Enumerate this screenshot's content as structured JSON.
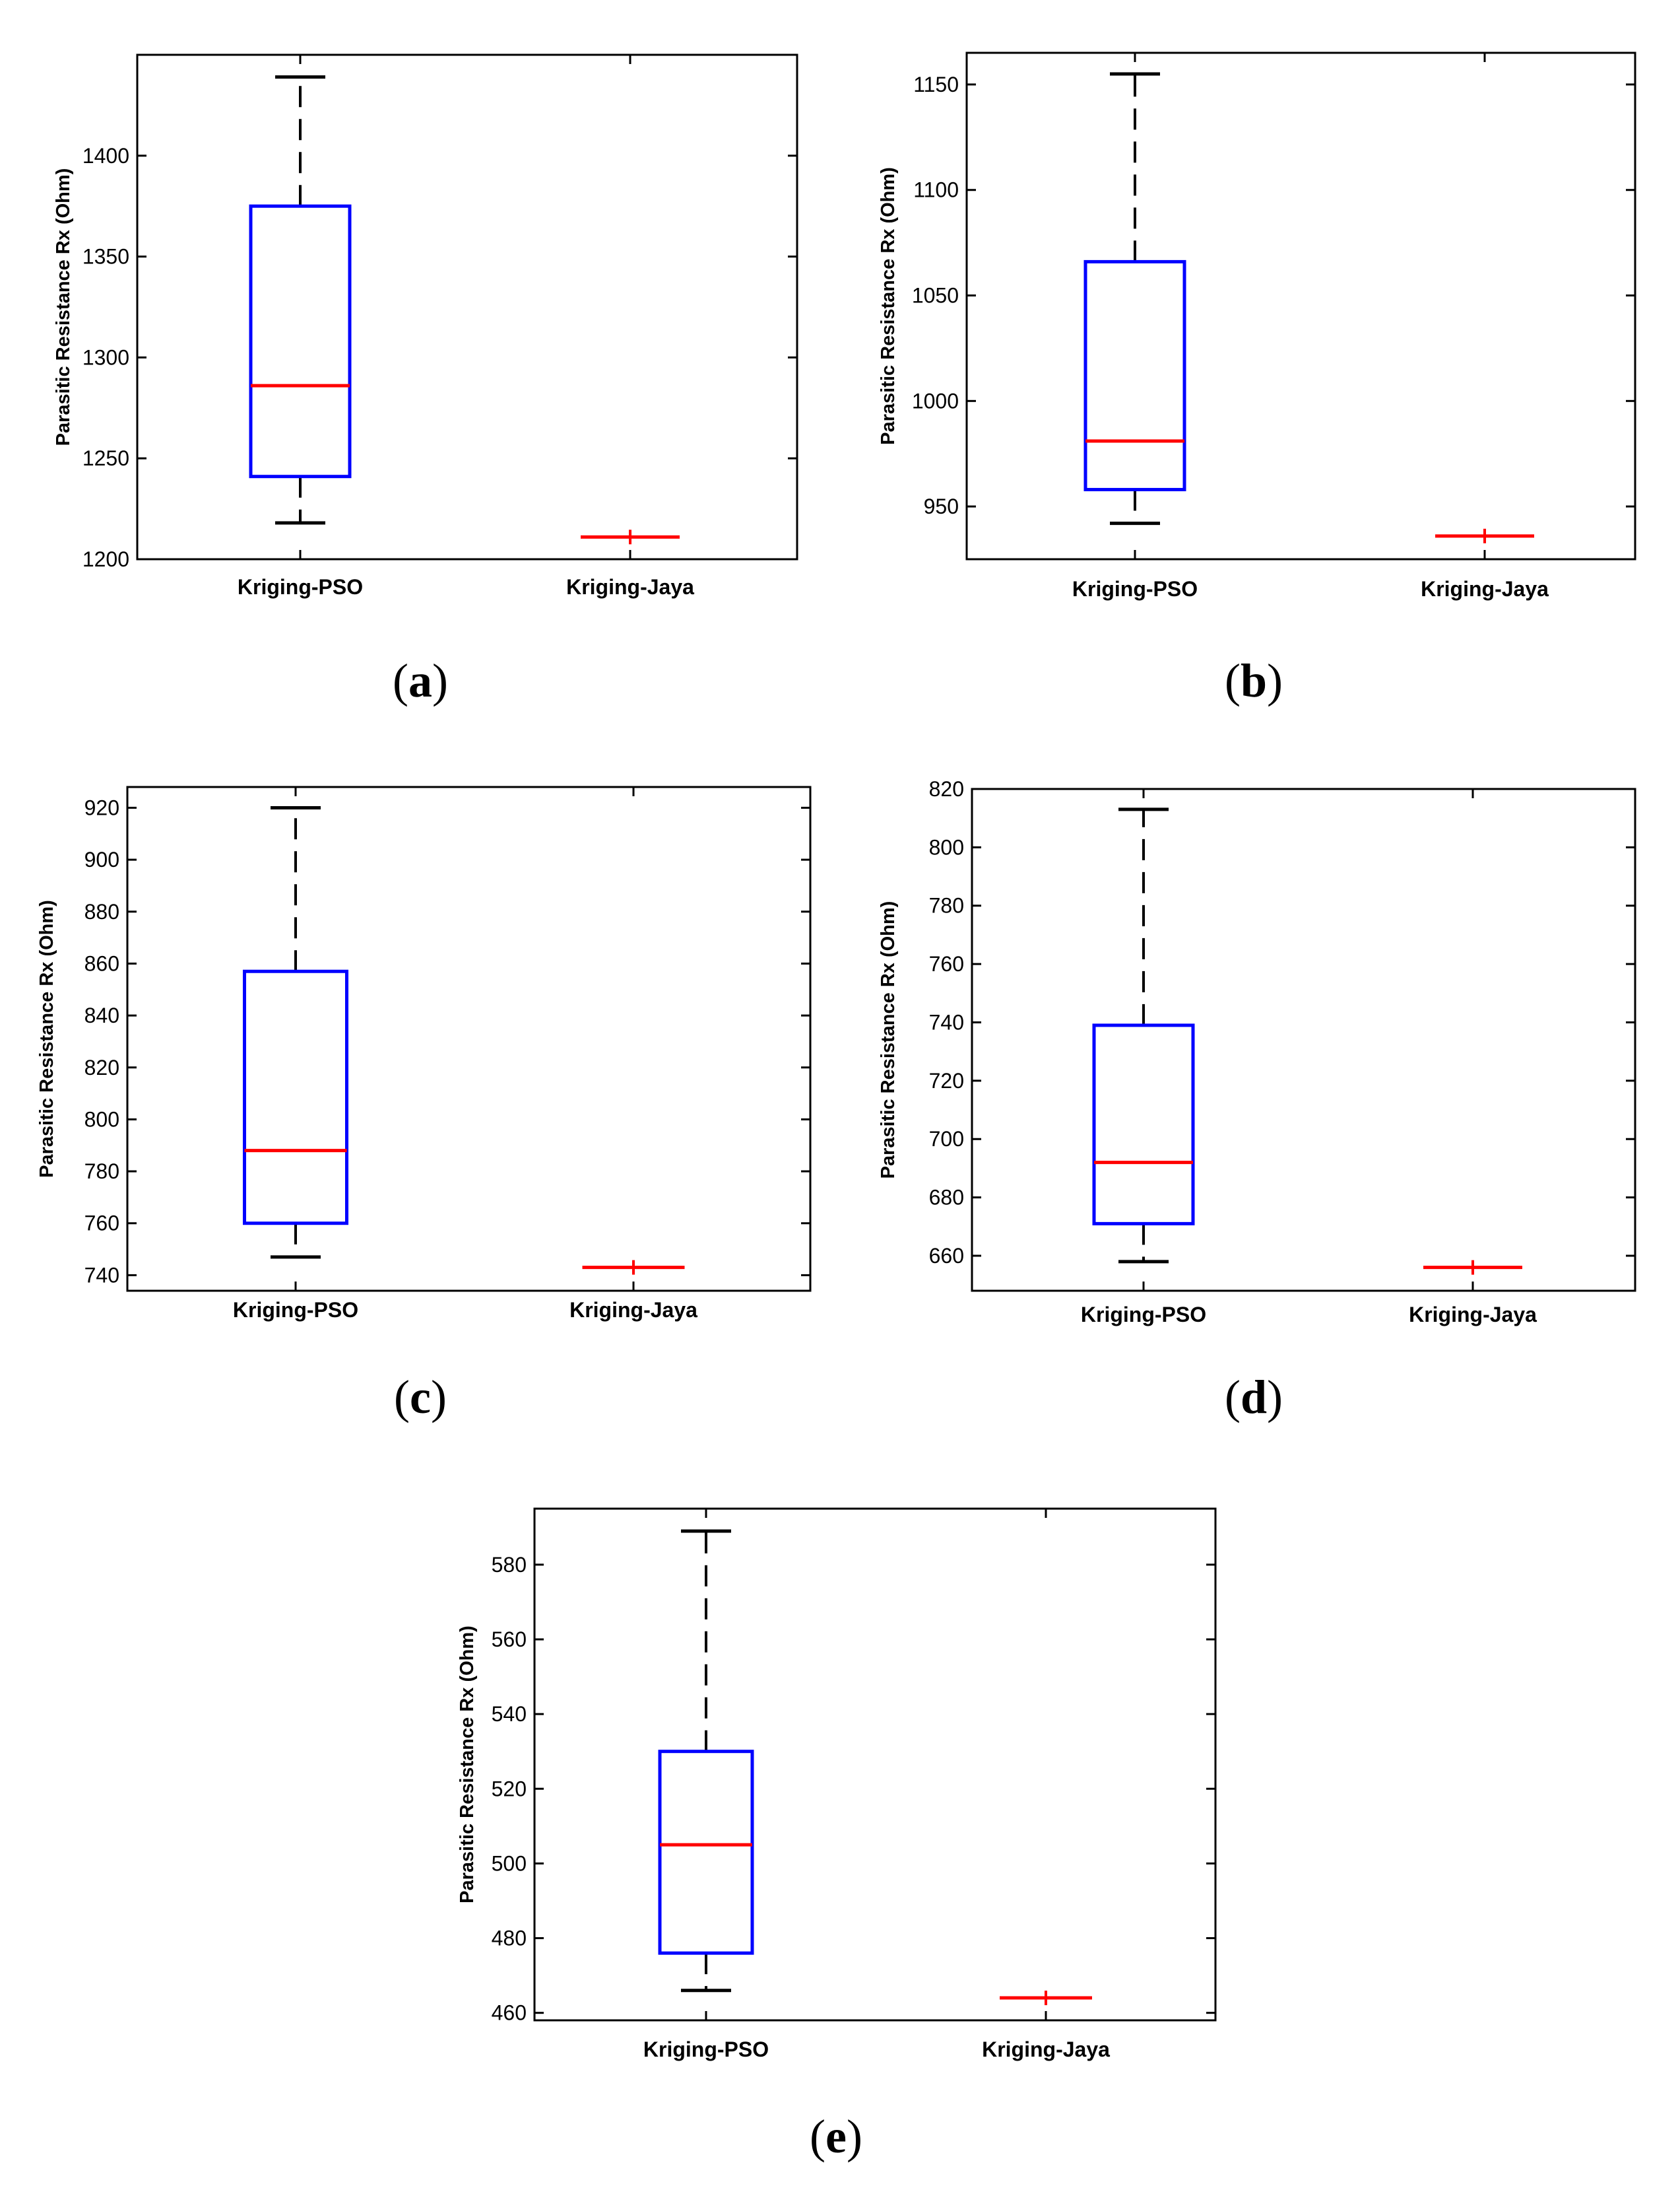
{
  "colors": {
    "box": "#0000ff",
    "median": "#ff0000",
    "whisker": "#000000",
    "axis": "#000000",
    "background": "#ffffff"
  },
  "chart_data": [
    {
      "panel": "a",
      "type": "box",
      "ylabel": "Parasitic Resistance Rx (Ohm)",
      "categories": [
        "Kriging-PSO",
        "Kriging-Jaya"
      ],
      "ylim": [
        1200,
        1450
      ],
      "yticks": [
        1200,
        1250,
        1300,
        1350,
        1400
      ],
      "tick_labels": [
        "1200",
        "1250",
        "1300",
        "1350",
        "1400"
      ],
      "boxes": [
        {
          "name": "Kriging-PSO",
          "min": 1218,
          "q1": 1241,
          "median": 1286,
          "q3": 1375,
          "max": 1439
        },
        {
          "name": "Kriging-Jaya",
          "min": 1211,
          "q1": 1211,
          "median": 1211,
          "q3": 1211,
          "max": 1211
        }
      ]
    },
    {
      "panel": "b",
      "type": "box",
      "ylabel": "Parasitic Resistance Rx (Ohm)",
      "categories": [
        "Kriging-PSO",
        "Kriging-Jaya"
      ],
      "ylim": [
        925,
        1165
      ],
      "yticks": [
        950,
        1000,
        1050,
        1100,
        1150
      ],
      "tick_labels": [
        "950",
        "1000",
        "1050",
        "1100",
        "1150"
      ],
      "boxes": [
        {
          "name": "Kriging-PSO",
          "min": 942,
          "q1": 958,
          "median": 981,
          "q3": 1066,
          "max": 1155
        },
        {
          "name": "Kriging-Jaya",
          "min": 936,
          "q1": 936,
          "median": 936,
          "q3": 936,
          "max": 936
        }
      ]
    },
    {
      "panel": "c",
      "type": "box",
      "ylabel": "Parasitic Resistance Rx (Ohm)",
      "categories": [
        "Kriging-PSO",
        "Kriging-Jaya"
      ],
      "ylim": [
        734,
        928
      ],
      "yticks": [
        740,
        760,
        780,
        800,
        820,
        840,
        860,
        880,
        900,
        920
      ],
      "tick_labels": [
        "740",
        "760",
        "780",
        "800",
        "820",
        "840",
        "860",
        "880",
        "900",
        "920"
      ],
      "boxes": [
        {
          "name": "Kriging-PSO",
          "min": 747,
          "q1": 760,
          "median": 788,
          "q3": 857,
          "max": 920
        },
        {
          "name": "Kriging-Jaya",
          "min": 743,
          "q1": 743,
          "median": 743,
          "q3": 743,
          "max": 743
        }
      ]
    },
    {
      "panel": "d",
      "type": "box",
      "ylabel": "Parasitic Resistance Rx (Ohm)",
      "categories": [
        "Kriging-PSO",
        "Kriging-Jaya"
      ],
      "ylim": [
        648,
        820
      ],
      "yticks": [
        660,
        680,
        700,
        720,
        740,
        760,
        780,
        800,
        820
      ],
      "tick_labels": [
        "660",
        "680",
        "700",
        "720",
        "740",
        "760",
        "780",
        "800",
        "820"
      ],
      "boxes": [
        {
          "name": "Kriging-PSO",
          "min": 658,
          "q1": 671,
          "median": 692,
          "q3": 739,
          "max": 813
        },
        {
          "name": "Kriging-Jaya",
          "min": 656,
          "q1": 656,
          "median": 656,
          "q3": 656,
          "max": 656
        }
      ]
    },
    {
      "panel": "e",
      "type": "box",
      "ylabel": "Parasitic Resistance Rx (Ohm)",
      "categories": [
        "Kriging-PSO",
        "Kriging-Jaya"
      ],
      "ylim": [
        458,
        595
      ],
      "yticks": [
        460,
        480,
        500,
        520,
        540,
        560,
        580
      ],
      "tick_labels": [
        "460",
        "480",
        "500",
        "520",
        "540",
        "560",
        "580"
      ],
      "boxes": [
        {
          "name": "Kriging-PSO",
          "min": 466,
          "q1": 476,
          "median": 505,
          "q3": 530,
          "max": 589
        },
        {
          "name": "Kriging-Jaya",
          "min": 464,
          "q1": 464,
          "median": 464,
          "q3": 464,
          "max": 464
        }
      ]
    }
  ]
}
